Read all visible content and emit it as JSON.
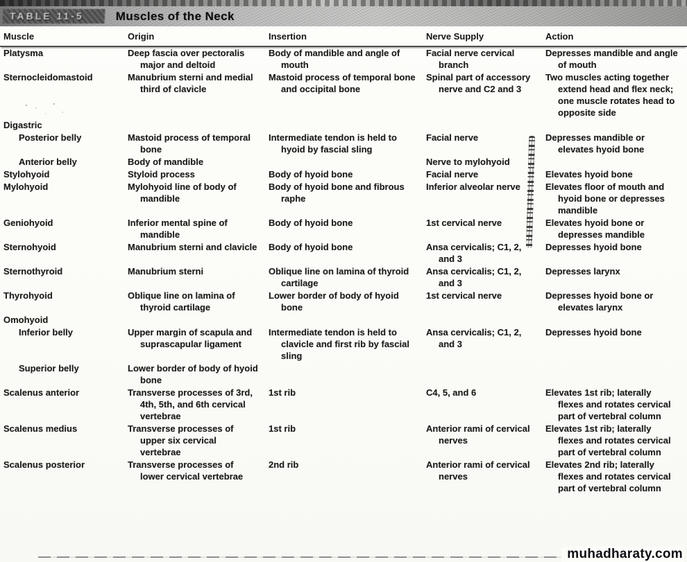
{
  "page": {
    "table_label": "TABLE 11-5",
    "title": "Muscles of the Neck",
    "watermark": "muhadharaty.com"
  },
  "colors": {
    "ink": "#1f1f1f",
    "band_gray": "#b5b5b5",
    "watermark_text": "#0f0f16"
  },
  "columns": [
    "Muscle",
    "Origin",
    "Insertion",
    "Nerve Supply",
    "Action"
  ],
  "rows": [
    {
      "muscle": "Platysma",
      "origin": "Deep fascia over pectoralis major and deltoid",
      "insertion": "Body of mandible and angle of mouth",
      "nerve": "Facial nerve cervical branch",
      "action": "Depresses mandible and angle of mouth"
    },
    {
      "muscle": "Sternocleidomastoid",
      "origin": "Manubrium sterni and medial third of clavicle",
      "insertion": "Mastoid process of temporal bone and occipital bone",
      "nerve": "Spinal part of accessory nerve and C2 and 3",
      "action": "Two muscles acting together extend head and flex neck; one muscle rotates head to opposite side"
    },
    {
      "muscle": "Digastric",
      "group": true
    },
    {
      "muscle": "Posterior belly",
      "indent": true,
      "origin": "Mastoid process of temporal bone",
      "insertion": "Intermediate tendon is held to hyoid by fascial sling",
      "nerve": "Facial nerve",
      "action": "Depresses mandible or elevates hyoid bone"
    },
    {
      "muscle": "Anterior belly",
      "indent": true,
      "origin": "Body of mandible",
      "nerve": "Nerve to mylohyoid"
    },
    {
      "muscle": "Stylohyoid",
      "origin": "Styloid process",
      "insertion": "Body of hyoid bone",
      "nerve": "Facial nerve",
      "action": "Elevates hyoid bone"
    },
    {
      "muscle": "Mylohyoid",
      "origin": "Mylohyoid line of body of mandible",
      "insertion": "Body of hyoid bone and fibrous raphe",
      "nerve": "Inferior alveolar nerve",
      "action": "Elevates floor of mouth and hyoid bone or depresses mandible"
    },
    {
      "muscle": "Geniohyoid",
      "origin": "Inferior mental spine of mandible",
      "insertion": "Body of hyoid bone",
      "nerve": "1st cervical nerve",
      "action": "Elevates hyoid bone or depresses mandible"
    },
    {
      "muscle": "Sternohyoid",
      "origin": "Manubrium sterni and clavicle",
      "insertion": "Body of hyoid bone",
      "nerve": "Ansa cervicalis; C1, 2, and 3",
      "action": "Depresses hyoid bone"
    },
    {
      "muscle": "Sternothyroid",
      "origin": "Manubrium sterni",
      "insertion": "Oblique line on lamina of thyroid cartilage",
      "nerve": "Ansa cervicalis; C1, 2, and 3",
      "action": "Depresses larynx"
    },
    {
      "muscle": "Thyrohyoid",
      "origin": "Oblique line on lamina of thyroid cartilage",
      "insertion": "Lower border of body of hyoid bone",
      "nerve": "1st cervical nerve",
      "action": "Depresses hyoid bone or elevates larynx"
    },
    {
      "muscle": "Omohyoid",
      "group": true
    },
    {
      "muscle": "Inferior belly",
      "indent": true,
      "origin": "Upper margin of scapula and suprascapular ligament",
      "insertion": "Intermediate tendon is held to clavicle and first rib by fascial sling",
      "nerve": "Ansa cervicalis; C1, 2, and 3",
      "action": "Depresses hyoid bone"
    },
    {
      "muscle": "Superior belly",
      "indent": true,
      "origin": "Lower border of body of hyoid bone"
    },
    {
      "muscle": "Scalenus anterior",
      "origin": "Transverse processes of 3rd, 4th, 5th, and 6th cervical vertebrae",
      "insertion": "1st rib",
      "nerve": "C4, 5, and 6",
      "action": "Elevates 1st rib; laterally flexes and rotates cervical part of vertebral column"
    },
    {
      "muscle": "Scalenus medius",
      "origin": "Transverse processes of upper six cervical vertebrae",
      "insertion": "1st rib",
      "nerve": "Anterior rami of cervical nerves",
      "action": "Elevates 1st rib; laterally flexes and rotates cervical part of vertebral column"
    },
    {
      "muscle": "Scalenus posterior",
      "origin": "Transverse processes of lower cervical vertebrae",
      "insertion": "2nd rib",
      "nerve": "Anterior rami of cervical nerves",
      "action": "Elevates 2nd rib; laterally flexes and rotates cervical part of vertebral column"
    }
  ]
}
